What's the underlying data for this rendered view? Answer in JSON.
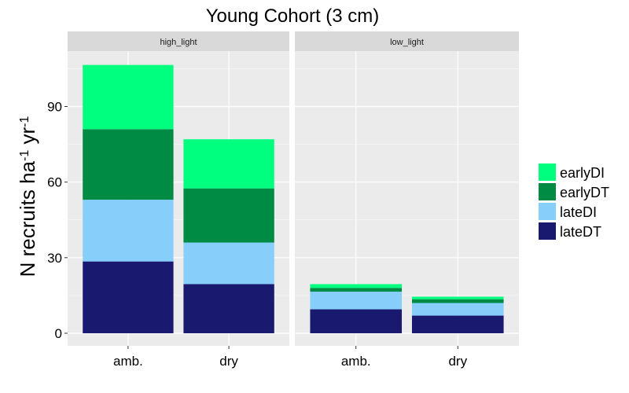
{
  "chart_data": {
    "type": "bar",
    "stacked": true,
    "title": "Young Cohort (3 cm)",
    "ylabel_base": "N recruits ha",
    "ylabel_sup1": "-1",
    "ylabel_mid": " yr",
    "ylabel_sup2": "-1",
    "xlabel": "",
    "ylim": [
      -5,
      112
    ],
    "yticks": [
      0,
      30,
      60,
      90
    ],
    "categories": [
      "amb.",
      "dry"
    ],
    "panels": [
      {
        "label": "high_light",
        "series_values": {
          "lateDT": [
            28.5,
            19.5
          ],
          "lateDI": [
            24.5,
            16.5
          ],
          "earlyDT": [
            28,
            21.5
          ],
          "earlyDI": [
            25.5,
            19.5
          ]
        }
      },
      {
        "label": "low_light",
        "series_values": {
          "lateDT": [
            9.5,
            7
          ],
          "lateDI": [
            7,
            5
          ],
          "earlyDT": [
            1.5,
            1.5
          ],
          "earlyDI": [
            1.5,
            1
          ]
        }
      }
    ],
    "series": [
      {
        "name": "lateDT",
        "color": "#191970"
      },
      {
        "name": "lateDI",
        "color": "#87CEFA"
      },
      {
        "name": "earlyDT",
        "color": "#008B45"
      },
      {
        "name": "earlyDI",
        "color": "#00FF7F"
      }
    ],
    "legend_order": [
      "earlyDI",
      "earlyDT",
      "lateDI",
      "lateDT"
    ],
    "legend_position": "right",
    "grid": true,
    "colors": {
      "panel_bg": "#EBEBEB",
      "strip_bg": "#D9D9D9",
      "grid_major": "#FFFFFF"
    }
  }
}
